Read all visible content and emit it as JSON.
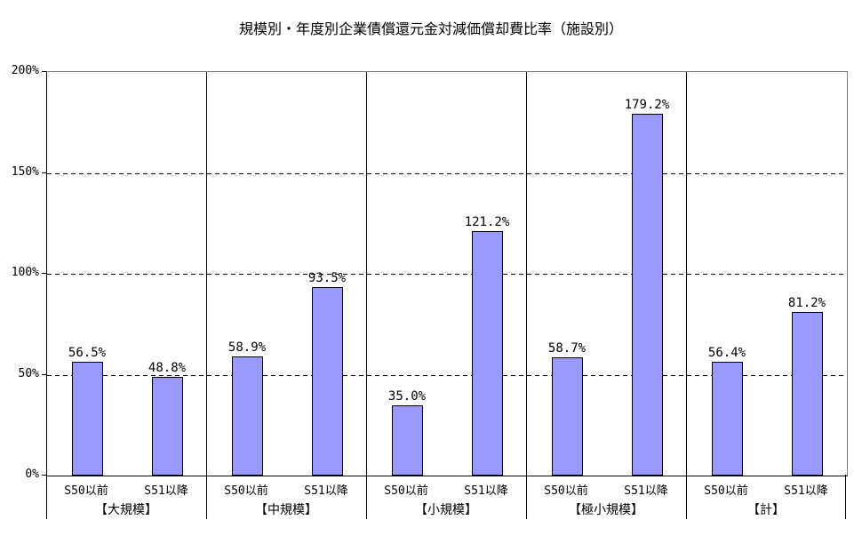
{
  "title": "規模別・年度別企業債償還元金対減価償却費比率（施設別）",
  "chart_data": {
    "type": "bar",
    "title": "規模別・年度別企業債償還元金対減価償却費比率（施設別）",
    "ylim": [
      0,
      200
    ],
    "y_ticks": [
      {
        "label": "0%",
        "value": 0
      },
      {
        "label": "50%",
        "value": 50
      },
      {
        "label": "100%",
        "value": 100
      },
      {
        "label": "150%",
        "value": 150
      },
      {
        "label": "200%",
        "value": 200
      }
    ],
    "gridline_values": [
      50,
      100,
      150
    ],
    "grid_style": "dashed",
    "legend_position": "none",
    "bar_color": "#9999FF",
    "bar_border_color": "#000000",
    "groups": [
      {
        "label": "【大規模】",
        "bars": [
          {
            "category": "S50以前",
            "value": 56.5,
            "value_label": "56.5%"
          },
          {
            "category": "S51以降",
            "value": 48.8,
            "value_label": "48.8%"
          }
        ]
      },
      {
        "label": "【中規模】",
        "bars": [
          {
            "category": "S50以前",
            "value": 58.9,
            "value_label": "58.9%"
          },
          {
            "category": "S51以降",
            "value": 93.5,
            "value_label": "93.5%"
          }
        ]
      },
      {
        "label": "【小規模】",
        "bars": [
          {
            "category": "S50以前",
            "value": 35.0,
            "value_label": "35.0%"
          },
          {
            "category": "S51以降",
            "value": 121.2,
            "value_label": "121.2%"
          }
        ]
      },
      {
        "label": "【極小規模】",
        "bars": [
          {
            "category": "S50以前",
            "value": 58.7,
            "value_label": "58.7%"
          },
          {
            "category": "S51以降",
            "value": 179.2,
            "value_label": "179.2%"
          }
        ]
      },
      {
        "label": "【計】",
        "bars": [
          {
            "category": "S50以前",
            "value": 56.4,
            "value_label": "56.4%"
          },
          {
            "category": "S51以降",
            "value": 81.2,
            "value_label": "81.2%"
          }
        ]
      }
    ]
  }
}
